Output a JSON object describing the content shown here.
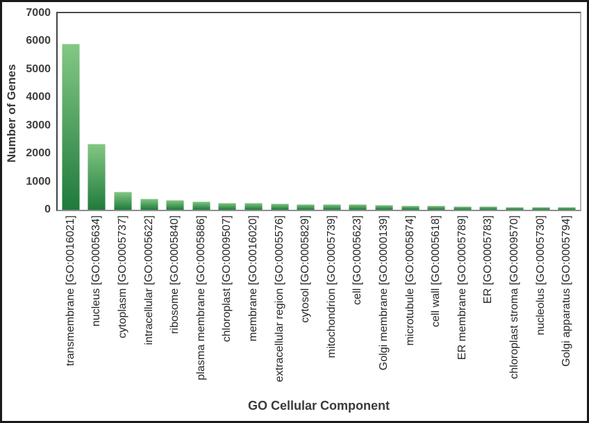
{
  "chart_data": {
    "type": "bar",
    "title": "",
    "xlabel": "GO Cellular Component",
    "ylabel": "Number of Genes",
    "ylim": [
      0,
      7000
    ],
    "yticks": [
      0,
      1000,
      2000,
      3000,
      4000,
      5000,
      6000,
      7000
    ],
    "grid": false,
    "legend_position": "none",
    "bar_color_top": "#84c884",
    "bar_color_bottom": "#1f7a3c",
    "categories": [
      "transmembrane [GO:0016021]",
      "nucleus [GO:0005634]",
      "cytoplasm [GO:0005737]",
      "intracellular [GO:0005622]",
      "ribosome [GO:0005840]",
      "plasma membrane [GO:0005886]",
      "chloroplast [GO:0009507]",
      "membrane [GO:0016020]",
      "extracellular region [GO:0005576]",
      "cytosol [GO:0005829]",
      "mitochondrion [GO:0005739]",
      "cell [GO:0005623]",
      "Golgi membrane [GO:0000139]",
      "microtubule [GO:0005874]",
      "cell wall [GO:0005618]",
      "ER membrane [GO:0005789]",
      "ER [GO:0005783]",
      "chloroplast stroma [GO:0009570]",
      "nucleolus [GO:0005730]",
      "Golgi apparatus [GO:0005794]"
    ],
    "values": [
      5900,
      2350,
      650,
      390,
      340,
      290,
      245,
      235,
      230,
      200,
      195,
      190,
      165,
      160,
      150,
      120,
      115,
      110,
      108,
      105
    ]
  },
  "frame": {
    "border_color": "#1a1a1a",
    "background": "#ffffff"
  }
}
